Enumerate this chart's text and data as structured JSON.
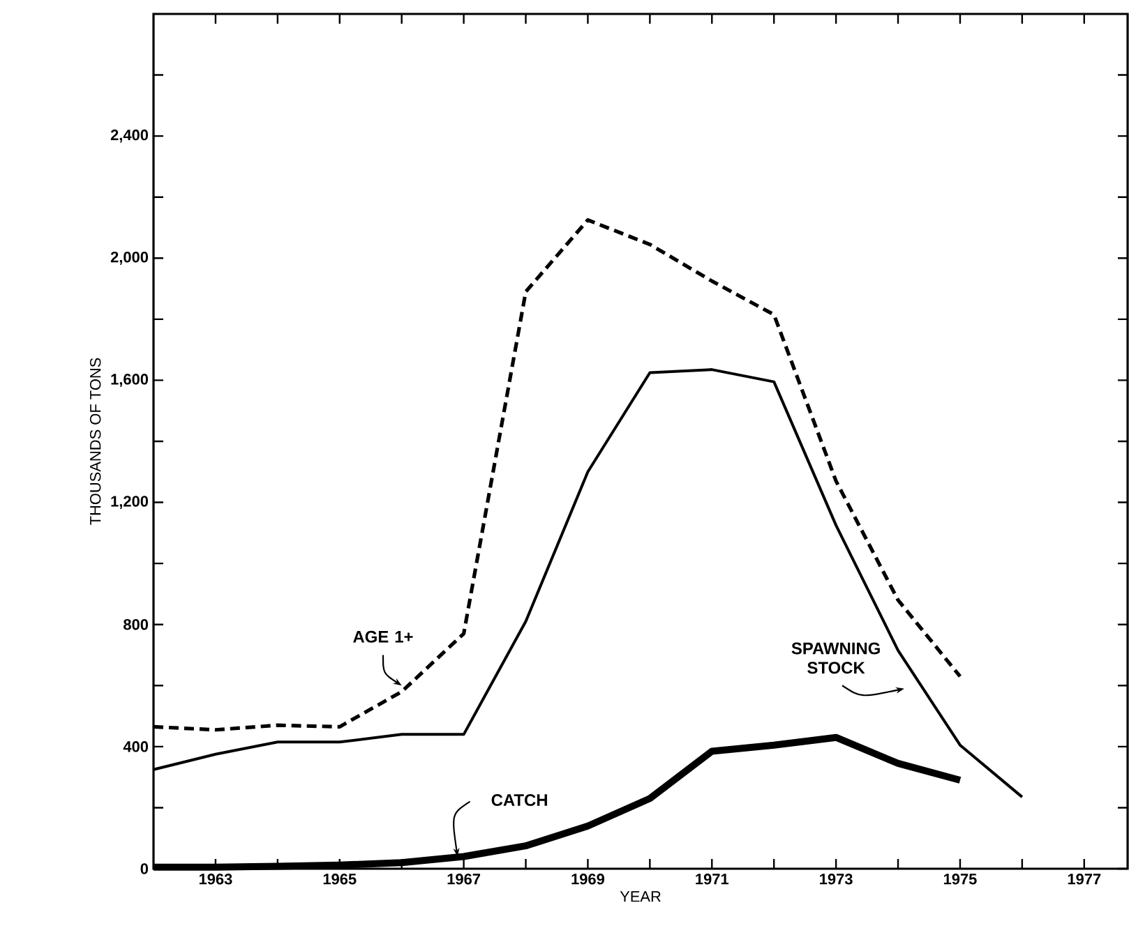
{
  "chart_data": {
    "type": "line",
    "xlabel": "YEAR",
    "ylabel": "THOUSANDS OF TONS",
    "xlim": [
      1962,
      1977.7
    ],
    "ylim": [
      0,
      2800
    ],
    "xticks": [
      {
        "value": 1963,
        "label": "1963"
      },
      {
        "value": 1964,
        "label": null
      },
      {
        "value": 1965,
        "label": "1965"
      },
      {
        "value": 1966,
        "label": null
      },
      {
        "value": 1967,
        "label": "1967"
      },
      {
        "value": 1968,
        "label": null
      },
      {
        "value": 1969,
        "label": "1969"
      },
      {
        "value": 1970,
        "label": null
      },
      {
        "value": 1971,
        "label": "1971"
      },
      {
        "value": 1972,
        "label": null
      },
      {
        "value": 1973,
        "label": "1973"
      },
      {
        "value": 1974,
        "label": null
      },
      {
        "value": 1975,
        "label": "1975"
      },
      {
        "value": 1976,
        "label": null
      },
      {
        "value": 1977,
        "label": "1977"
      }
    ],
    "yticks": [
      0,
      {
        "value": 200,
        "label": null
      },
      400,
      {
        "value": 600,
        "label": null
      },
      800,
      {
        "value": 1000,
        "label": null
      },
      {
        "value": 1200,
        "label": "1,200"
      },
      {
        "value": 1400,
        "label": null
      },
      {
        "value": 1600,
        "label": "1,600"
      },
      {
        "value": 1800,
        "label": null
      },
      {
        "value": 2000,
        "label": "2,000"
      },
      {
        "value": 2200,
        "label": null
      },
      {
        "value": 2400,
        "label": "2,400"
      },
      {
        "value": 2600,
        "label": null
      }
    ],
    "grid": false,
    "legend": false,
    "marker": "none",
    "series": [
      {
        "name": "AGE 1+",
        "color": "#000000",
        "line_style": "dashed",
        "x": [
          1962,
          1963,
          1964,
          1965,
          1966,
          1967,
          1968,
          1969,
          1970,
          1971,
          1972,
          1973,
          1974,
          1975
        ],
        "values": [
          465,
          455,
          470,
          465,
          580,
          770,
          1890,
          2125,
          2045,
          1925,
          1815,
          1270,
          880,
          630
        ]
      },
      {
        "name": "SPAWNING STOCK",
        "color": "#000000",
        "line_style": "solid",
        "x": [
          1962,
          1963,
          1964,
          1965,
          1966,
          1967,
          1968,
          1969,
          1970,
          1971,
          1972,
          1973,
          1974,
          1975,
          1976
        ],
        "values": [
          325,
          375,
          415,
          415,
          440,
          440,
          810,
          1300,
          1625,
          1635,
          1595,
          1125,
          715,
          405,
          235
        ]
      },
      {
        "name": "CATCH",
        "color": "#000000",
        "line_style": "solid",
        "x": [
          1962,
          1963,
          1964,
          1965,
          1966,
          1967,
          1968,
          1969,
          1970,
          1971,
          1972,
          1973,
          1974,
          1975
        ],
        "values": [
          5,
          5,
          8,
          12,
          20,
          40,
          75,
          140,
          230,
          385,
          405,
          430,
          345,
          290
        ]
      }
    ]
  }
}
